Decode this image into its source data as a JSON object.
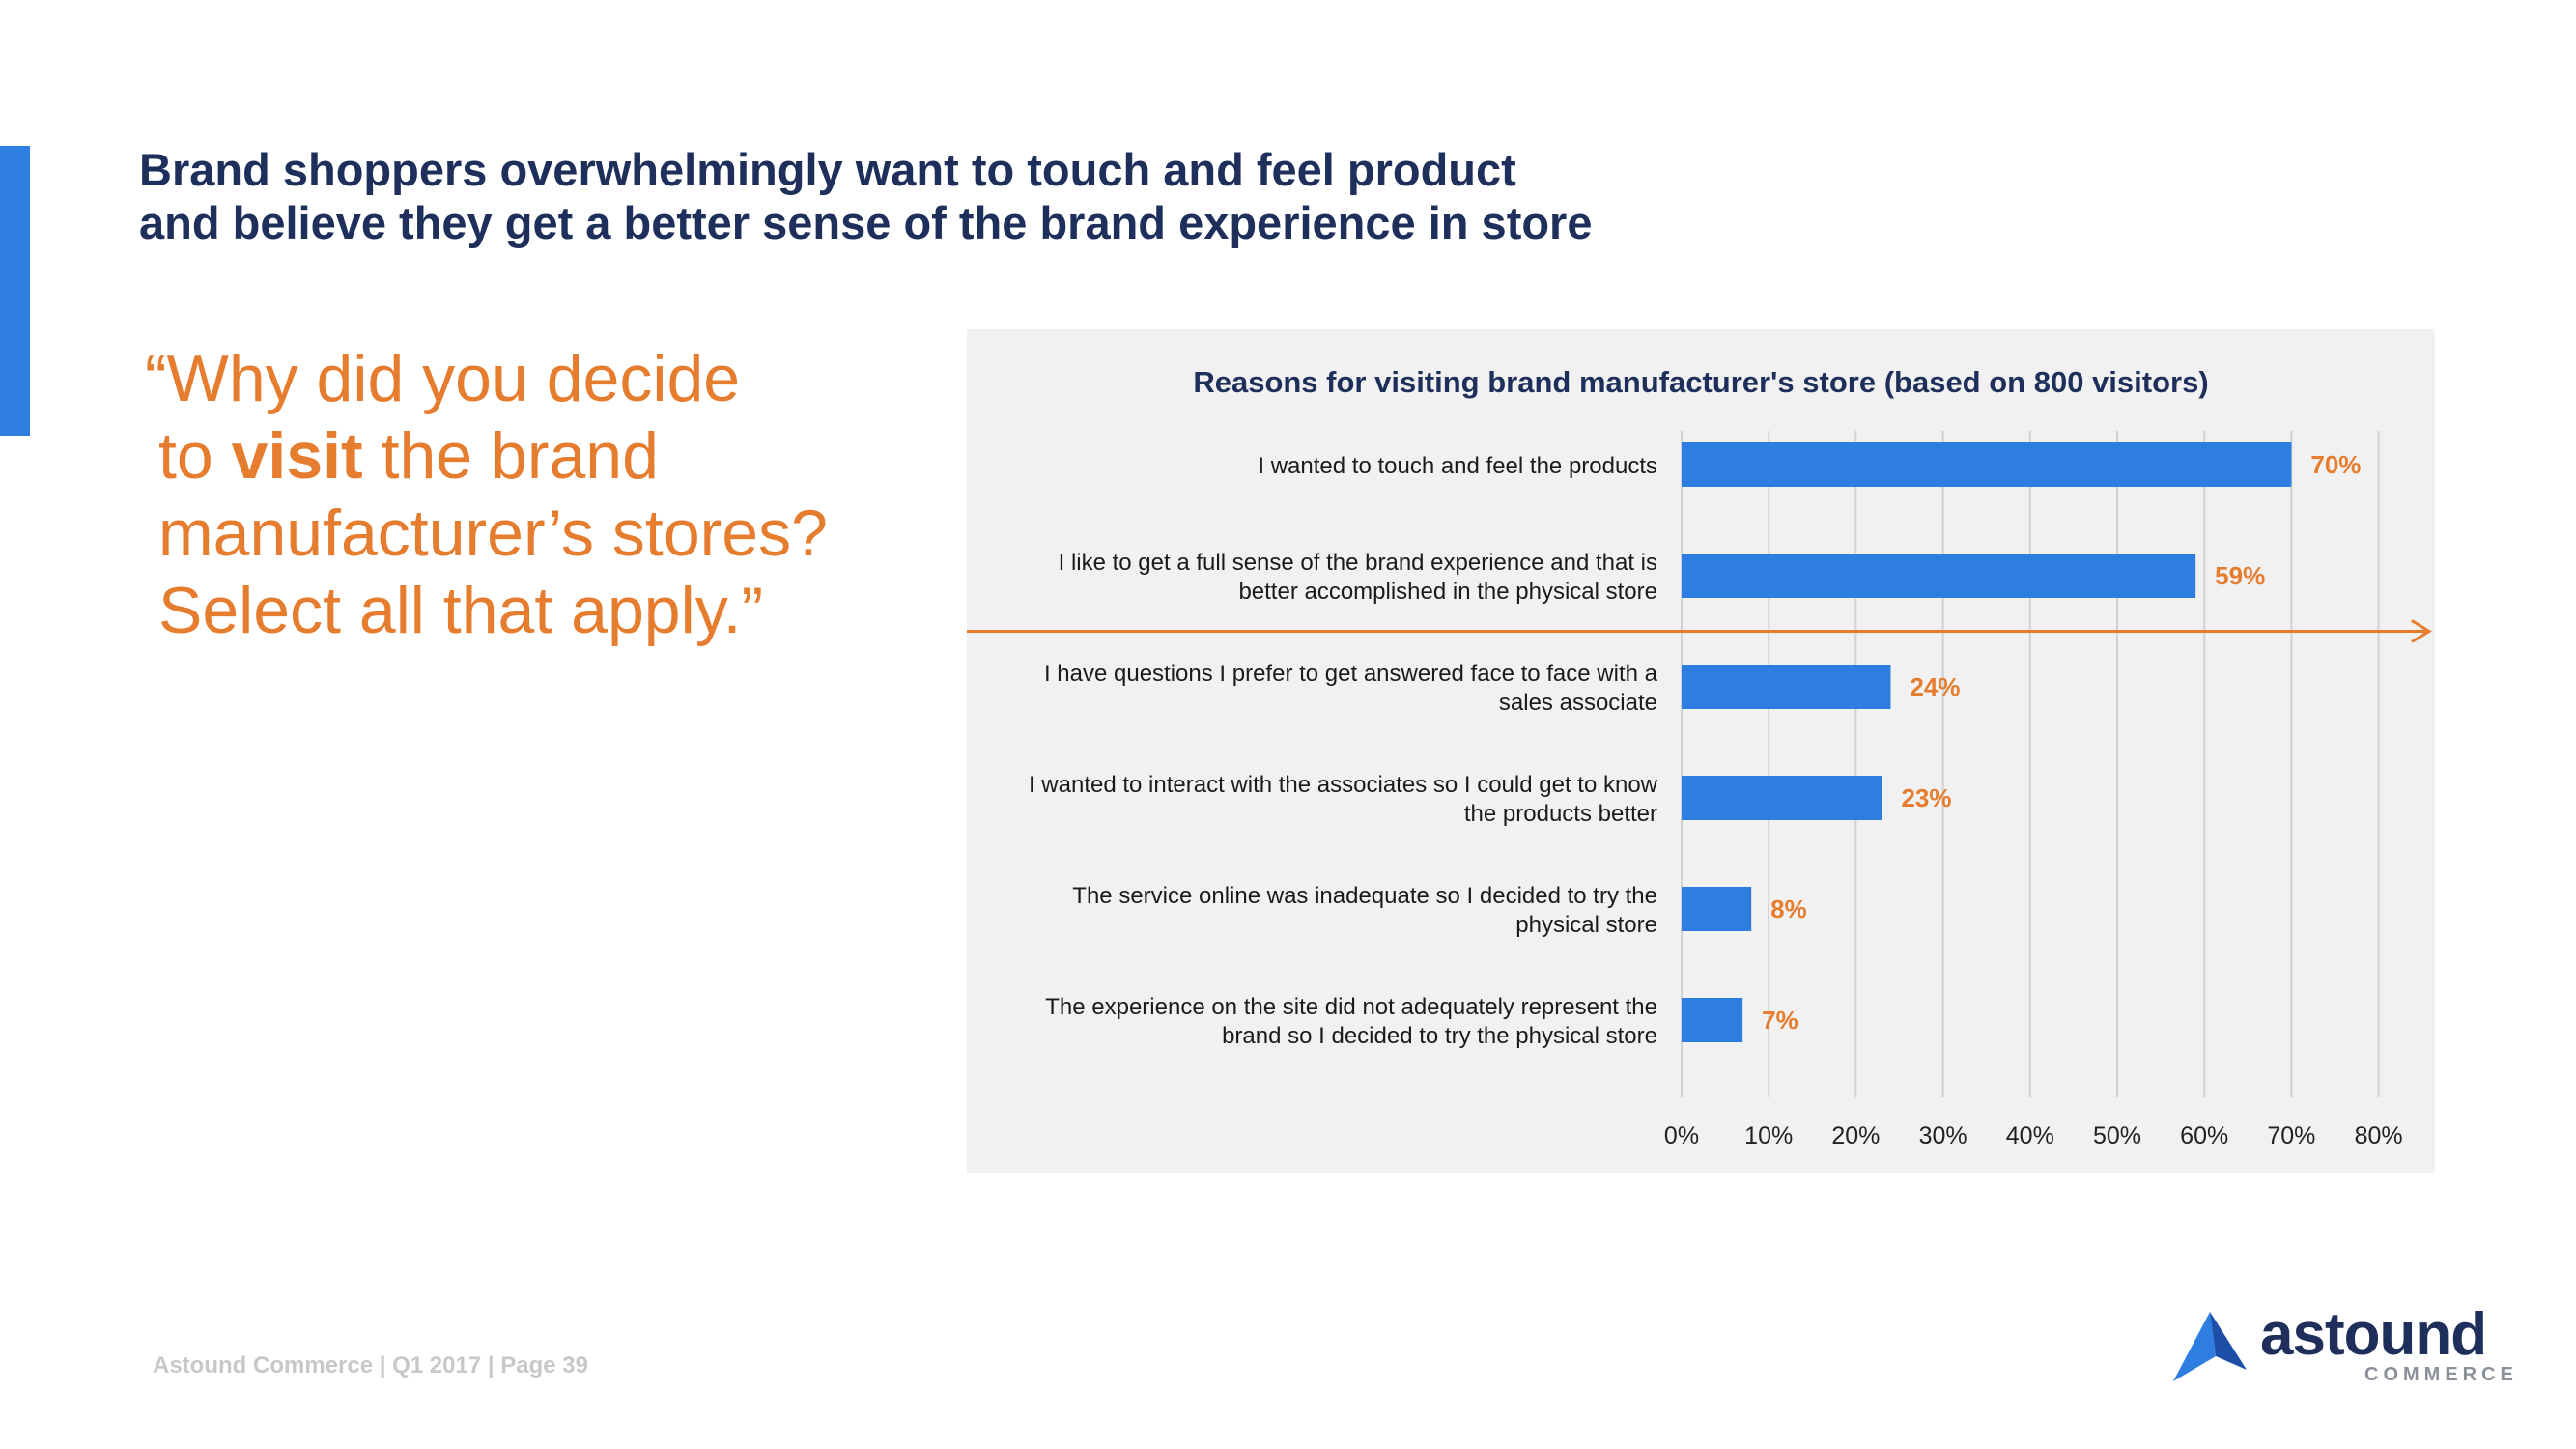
{
  "headline": {
    "line1": "Brand shoppers overwhelmingly want to touch and feel product",
    "line2": "and believe they get a better sense of the brand experience in store"
  },
  "quote": {
    "line1": "“Why did you decide",
    "line2_pre": "to ",
    "line2_emph": "visit",
    "line2_post": " the brand",
    "line3": "manufacturer’s stores?",
    "line4": "Select all that apply.”"
  },
  "chart_data": {
    "type": "bar",
    "orientation": "horizontal",
    "title": "Reasons for visiting brand manufacturer's store (based on 800 visitors)",
    "categories": [
      [
        "I wanted to touch and feel the products"
      ],
      [
        "I like to get a full sense of the brand experience and that is",
        "better accomplished in the physical  store"
      ],
      [
        "I have questions I prefer to get answered face to face with a",
        "sales associate"
      ],
      [
        "I wanted to interact with the associates so I could get to know",
        "the products better"
      ],
      [
        "The service online was inadequate so I decided to try the",
        "physical store"
      ],
      [
        "The experience on the site did not adequately represent the",
        "brand so I decided to try the physical store"
      ]
    ],
    "values": [
      70,
      59,
      24,
      23,
      8,
      7
    ],
    "data_labels": [
      "70%",
      "59%",
      "24%",
      "23%",
      "8%",
      "7%"
    ],
    "xlim": [
      0,
      80
    ],
    "ticks": [
      "0%",
      "10%",
      "20%",
      "30%",
      "40%",
      "50%",
      "60%",
      "70%",
      "80%"
    ],
    "grid": true,
    "divider_after_index": 1
  },
  "colors": {
    "bar": "#2e7de1",
    "label": "#e57c2e",
    "grid": "#d2d2d2",
    "text": "#1a1a1a",
    "title": "#1d2f5a"
  },
  "footer": "Astound Commerce | Q1 2017 | Page 39",
  "logo": {
    "word": "astound",
    "sub": "COMMERCE"
  }
}
